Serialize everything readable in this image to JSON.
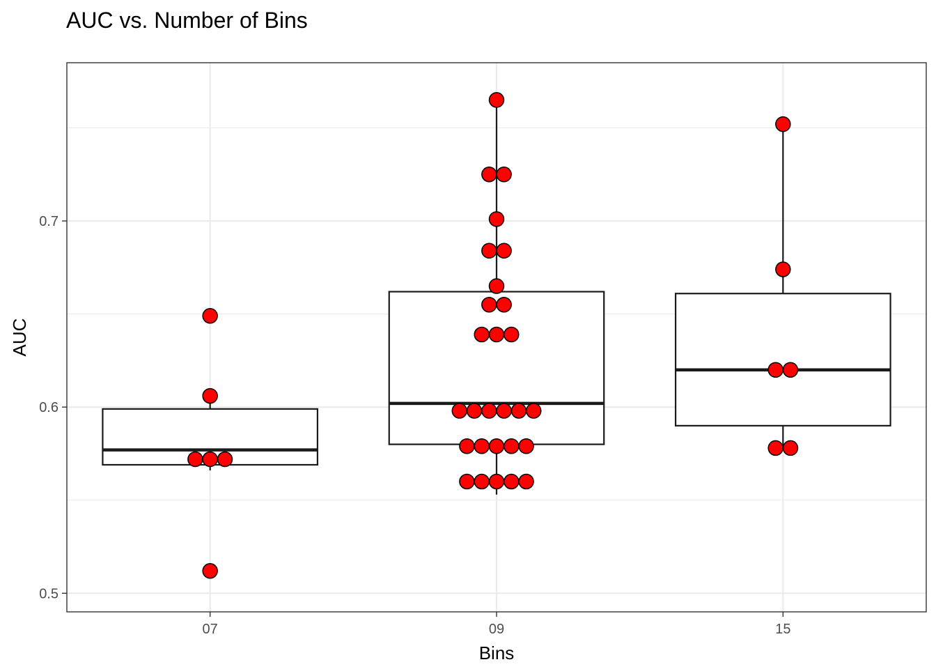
{
  "chart_data": {
    "type": "boxplot",
    "title": "AUC vs. Number of Bins",
    "xlabel": "Bins",
    "ylabel": "AUC",
    "categories": [
      "07",
      "09",
      "15"
    ],
    "ylim": [
      0.49,
      0.785
    ],
    "yticks": [
      0.5,
      0.6,
      0.7
    ],
    "ytick_labels": [
      "0.5",
      "0.6",
      "0.7"
    ],
    "grid": true,
    "boxes": [
      {
        "category": "07",
        "whisker_low": 0.566,
        "q1": 0.569,
        "median": 0.577,
        "q3": 0.599,
        "whisker_high": 0.606
      },
      {
        "category": "09",
        "whisker_low": 0.553,
        "q1": 0.58,
        "median": 0.602,
        "q3": 0.662,
        "whisker_high": 0.765
      },
      {
        "category": "15",
        "whisker_low": 0.578,
        "q1": 0.59,
        "median": 0.62,
        "q3": 0.661,
        "whisker_high": 0.752
      }
    ],
    "points": [
      {
        "category": "07",
        "values": [
          0.512,
          0.572,
          0.572,
          0.572,
          0.606,
          0.649
        ]
      },
      {
        "category": "09",
        "values": [
          0.56,
          0.56,
          0.56,
          0.56,
          0.56,
          0.579,
          0.579,
          0.579,
          0.579,
          0.579,
          0.598,
          0.598,
          0.598,
          0.598,
          0.598,
          0.598,
          0.639,
          0.639,
          0.639,
          0.655,
          0.655,
          0.665,
          0.684,
          0.684,
          0.701,
          0.725,
          0.725,
          0.765
        ]
      },
      {
        "category": "15",
        "values": [
          0.578,
          0.578,
          0.62,
          0.62,
          0.674,
          0.752
        ]
      }
    ],
    "colors": {
      "point_fill": "#ff0000",
      "point_stroke": "#000000",
      "box_stroke": "#1a1a1a",
      "grid": "#ebebeb",
      "panel_border": "#333333",
      "tick_text": "#4d4d4d"
    }
  }
}
